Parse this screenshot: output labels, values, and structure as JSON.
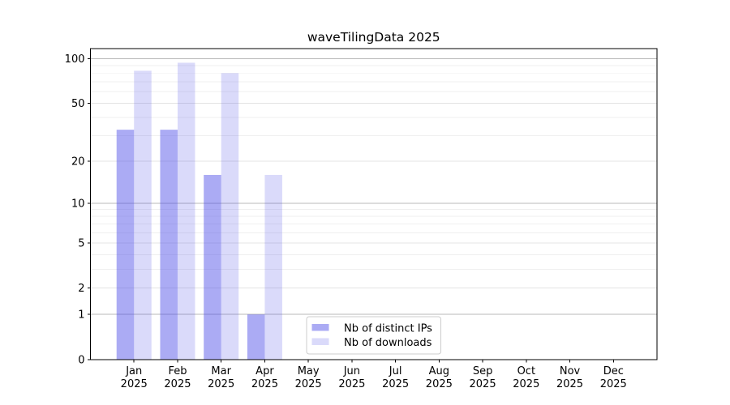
{
  "title": "waveTilingData 2025",
  "chart_data": {
    "type": "bar",
    "title": "waveTilingData 2025",
    "categories": [
      "Jan",
      "Feb",
      "Mar",
      "Apr",
      "May",
      "Jun",
      "Jul",
      "Aug",
      "Sep",
      "Oct",
      "Nov",
      "Dec"
    ],
    "category_year": "2025",
    "series": [
      {
        "name": "Nb of distinct IPs",
        "color": "rgba(80,80,232,0.48)",
        "solid_color": "#a9a9f4",
        "values": [
          33,
          33,
          16,
          1,
          0,
          0,
          0,
          0,
          0,
          0,
          0,
          0
        ]
      },
      {
        "name": "Nb of downloads",
        "color": "rgba(80,80,232,0.21)",
        "solid_color": "#dbdbfa",
        "values": [
          83,
          94,
          80,
          16,
          0,
          0,
          0,
          0,
          0,
          0,
          0,
          0
        ]
      }
    ],
    "yscale": "log1p",
    "ylim": [
      0,
      117
    ],
    "yticks": [
      0,
      1,
      2,
      5,
      10,
      20,
      50,
      100
    ],
    "yticks_minor": [
      3,
      4,
      6,
      7,
      8,
      9,
      30,
      40,
      60,
      70,
      80,
      90
    ],
    "grid": true,
    "legend_position": "lower center"
  }
}
